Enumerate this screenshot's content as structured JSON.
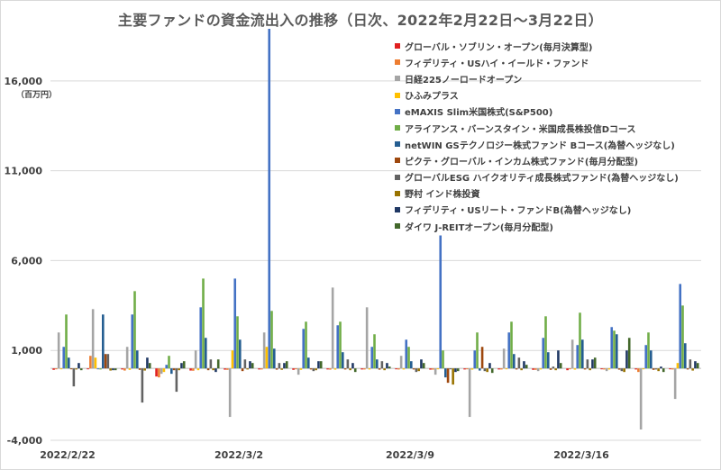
{
  "chart_data": {
    "type": "bar",
    "title": "主要ファンドの資金流出入の推移（日次、2022年2月22日～3月22日）",
    "unit_label": "（百万円）",
    "ylim": [
      -4000,
      19000
    ],
    "yticks": [
      16000,
      11000,
      6000,
      1000,
      -4000
    ],
    "ytick_labels": [
      "16,000",
      "11,000",
      "6,000",
      "1,000",
      "-4,000"
    ],
    "grid": true,
    "legend_position": "top-right",
    "categories": [
      "2022/2/22",
      "2022/2/24",
      "2022/2/25",
      "2022/2/28",
      "2022/3/1",
      "2022/3/2",
      "2022/3/3",
      "2022/3/4",
      "2022/3/7",
      "2022/3/8",
      "2022/3/9",
      "2022/3/10",
      "2022/3/11",
      "2022/3/14",
      "2022/3/15",
      "2022/3/16",
      "2022/3/17",
      "2022/3/18",
      "2022/3/22"
    ],
    "x_labels": [
      {
        "index": 0,
        "label": "2022/2/22"
      },
      {
        "index": 5,
        "label": "2022/3/2"
      },
      {
        "index": 10,
        "label": "2022/3/9"
      },
      {
        "index": 15,
        "label": "2022/3/16"
      }
    ],
    "series": [
      {
        "name": "グローバル・ソブリン・オープン(毎月決算型)",
        "color": "#e02020",
        "values": [
          -80,
          -50,
          -60,
          -450,
          -120,
          -70,
          -60,
          -80,
          -60,
          -60,
          -50,
          -70,
          -60,
          -60,
          -80,
          -100,
          -50,
          -60,
          -50
        ]
      },
      {
        "name": "フィデリティ・USハイ・イールド・ファンド",
        "color": "#ed7d31",
        "values": [
          -50,
          700,
          -120,
          -500,
          -130,
          -80,
          -60,
          -50,
          -70,
          -60,
          -60,
          -70,
          -50,
          -60,
          -80,
          -50,
          -60,
          -200,
          -60
        ]
      },
      {
        "name": "日経225ノーロードオープン",
        "color": "#a5a5a5",
        "values": [
          2000,
          3300,
          1200,
          -300,
          1000,
          -2700,
          2000,
          -350,
          4500,
          3400,
          700,
          -350,
          -2700,
          1100,
          -150,
          1600,
          -150,
          -3400,
          -1700
        ]
      },
      {
        "name": "ひふみプラス",
        "color": "#ffc000",
        "values": [
          -50,
          600,
          -80,
          -200,
          -100,
          1000,
          1200,
          -80,
          -70,
          -60,
          -60,
          -50,
          -70,
          -50,
          -60,
          -70,
          -60,
          -50,
          300
        ]
      },
      {
        "name": "eMAXIS Slim米国株式(S&P500)",
        "color": "#4472c4",
        "values": [
          1200,
          -50,
          3000,
          200,
          3400,
          5000,
          18900,
          2200,
          2400,
          1200,
          1600,
          7400,
          1000,
          2000,
          1700,
          1300,
          2300,
          1300,
          4700
        ]
      },
      {
        "name": "アライアンス・バーンスタイン・米国成長株投信Dコース",
        "color": "#70ad47",
        "values": [
          3000,
          -60,
          4300,
          700,
          5000,
          2900,
          3200,
          2600,
          2600,
          1900,
          1200,
          1000,
          2000,
          2600,
          2900,
          3100,
          2100,
          2000,
          3500
        ]
      },
      {
        "name": "netWIN GSテクノロジー株式ファンド Bコース(為替ヘッジなし)",
        "color": "#255e91",
        "values": [
          600,
          3000,
          1000,
          -300,
          1700,
          1600,
          1100,
          600,
          900,
          500,
          400,
          -500,
          -120,
          800,
          900,
          1600,
          1900,
          1000,
          1400
        ]
      },
      {
        "name": "ピクテ・グローバル・インカム株式ファンド(毎月分配型)",
        "color": "#9e480e",
        "values": [
          -50,
          800,
          -80,
          -100,
          -100,
          -150,
          -70,
          -60,
          -60,
          -70,
          -60,
          -800,
          1200,
          -60,
          -80,
          -60,
          -70,
          -80,
          -60
        ]
      },
      {
        "name": "グローバルESG ハイクオリティ成長株式ファンド(為替ヘッジなし)",
        "color": "#636363",
        "values": [
          -1000,
          800,
          -1900,
          -1300,
          500,
          500,
          300,
          -150,
          500,
          400,
          -200,
          -50,
          -150,
          600,
          100,
          500,
          -150,
          -60,
          500
        ]
      },
      {
        "name": "野村 インド株投資",
        "color": "#997300",
        "values": [
          -60,
          -120,
          -120,
          -100,
          -100,
          -60,
          -80,
          -100,
          -100,
          -100,
          -150,
          -900,
          -200,
          -100,
          -100,
          -100,
          -200,
          -150,
          -120
        ]
      },
      {
        "name": "フィデリティ・USリート・ファンドB(為替ヘッジなし)",
        "color": "#203864",
        "values": [
          300,
          -100,
          600,
          300,
          -200,
          400,
          300,
          400,
          300,
          300,
          500,
          -200,
          300,
          400,
          1000,
          500,
          1000,
          100,
          400
        ]
      },
      {
        "name": "ダイワ J-REITオープン(毎月分配型)",
        "color": "#43682b",
        "values": [
          -100,
          -100,
          300,
          400,
          500,
          300,
          400,
          400,
          -200,
          100,
          300,
          -150,
          -250,
          200,
          300,
          600,
          1700,
          -200,
          300
        ]
      }
    ]
  }
}
